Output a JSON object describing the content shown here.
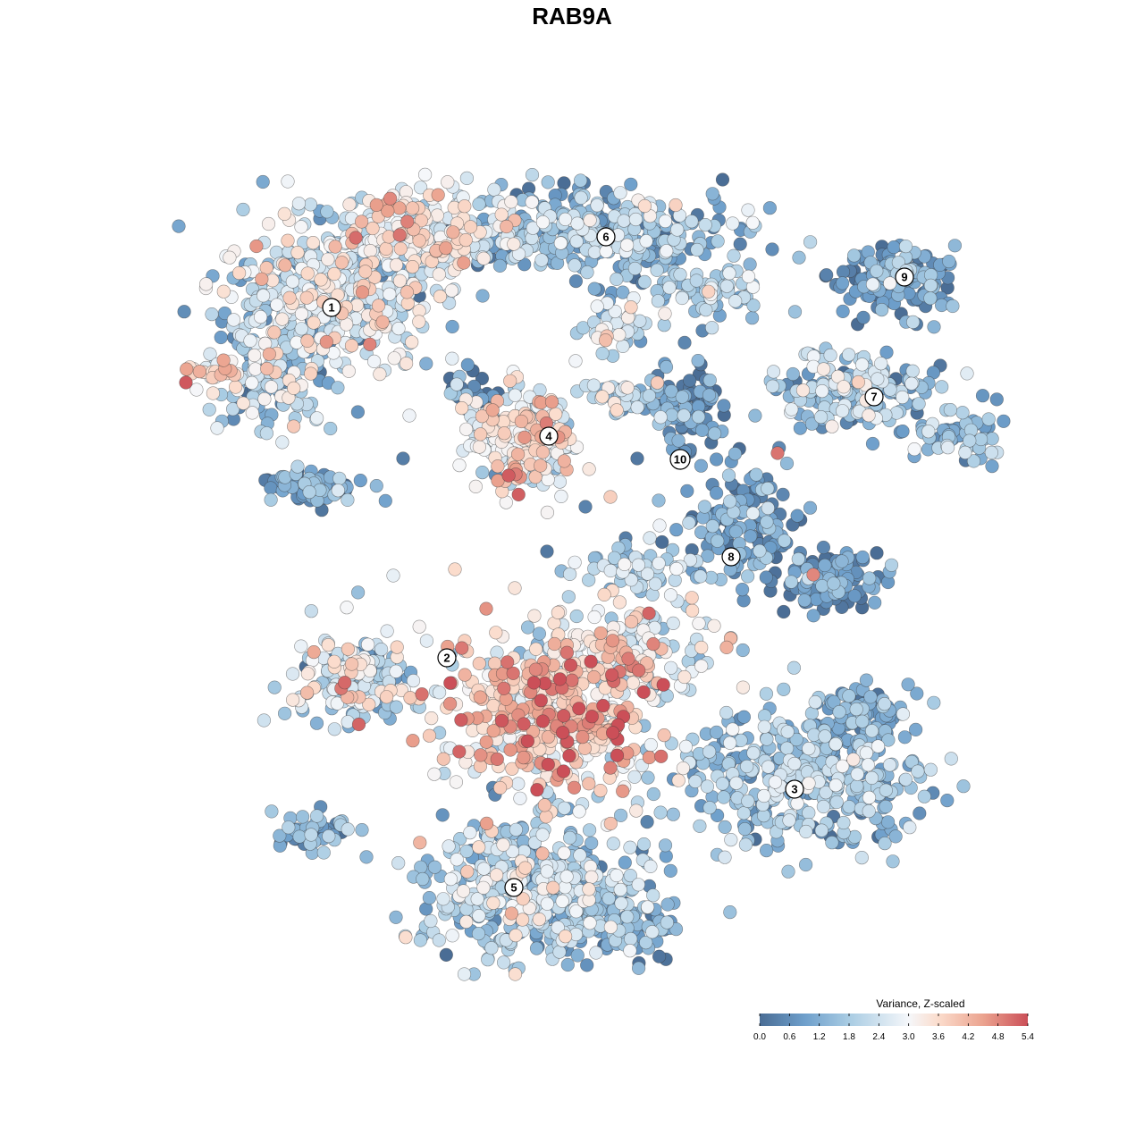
{
  "chart_data": {
    "type": "scatter",
    "title": "RAB9A",
    "xlabel": "",
    "ylabel": "",
    "grid": false,
    "color_scale": {
      "title": "Variance, Z-scaled",
      "min": 0.0,
      "max": 5.4,
      "ticks": [
        "0.0",
        "0.6",
        "1.2",
        "1.8",
        "2.4",
        "3.0",
        "3.6",
        "4.2",
        "4.8",
        "5.4"
      ],
      "stops": [
        {
          "value": 0.0,
          "color": "#4a6d95"
        },
        {
          "value": 0.9,
          "color": "#6e9fcb"
        },
        {
          "value": 1.8,
          "color": "#a9cce3"
        },
        {
          "value": 3.0,
          "color": "#f5f7fa"
        },
        {
          "value": 3.6,
          "color": "#fbdccc"
        },
        {
          "value": 4.5,
          "color": "#eba38f"
        },
        {
          "value": 5.4,
          "color": "#cb4f58"
        }
      ],
      "legend_position": "bottom-right"
    },
    "clusters": [
      {
        "label": "1",
        "x": 371,
        "y": -344,
        "mean": 2.3
      },
      {
        "label": "2",
        "x": 500,
        "y": -736,
        "mean": 2.1
      },
      {
        "label": "3",
        "x": 889,
        "y": -883,
        "mean": 1.5
      },
      {
        "label": "4",
        "x": 614,
        "y": -488,
        "mean": 2.8
      },
      {
        "label": "5",
        "x": 575,
        "y": -993,
        "mean": 1.9
      },
      {
        "label": "6",
        "x": 678,
        "y": -265,
        "mean": 1.4
      },
      {
        "label": "7",
        "x": 978,
        "y": -444,
        "mean": 1.6
      },
      {
        "label": "8",
        "x": 818,
        "y": -623,
        "mean": 0.8
      },
      {
        "label": "9",
        "x": 1012,
        "y": -310,
        "mean": 0.9
      },
      {
        "label": "10",
        "x": 761,
        "y": -514,
        "mean": 0.7
      }
    ],
    "point_cloud_seed": 20240607
  }
}
